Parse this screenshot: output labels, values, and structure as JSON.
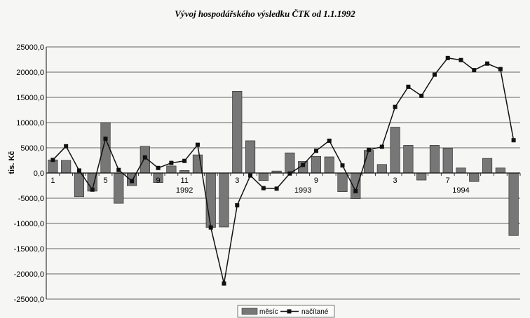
{
  "chart_data": {
    "type": "bar",
    "title": "Vývoj hospodářského výsledku ČTK od 1.1.1992",
    "ylabel": "tis. Kč",
    "xlabel": "",
    "ylim": [
      -25000,
      25000
    ],
    "yticks": [
      -25000,
      -20000,
      -15000,
      -10000,
      -5000,
      0,
      5000,
      10000,
      15000,
      20000,
      25000
    ],
    "ytick_labels": [
      "-25000,0",
      "-20000,0",
      "-15000,0",
      "-10000,0",
      "-5000,0",
      "0,0",
      "5000,0",
      "10000,0",
      "15000,0",
      "20000,0",
      "25000,0"
    ],
    "grid": true,
    "legend_position": "bottom-center",
    "x_month_labels": [
      {
        "index": 0,
        "label": "1"
      },
      {
        "index": 4,
        "label": "5"
      },
      {
        "index": 8,
        "label": "9"
      },
      {
        "index": 10,
        "label": "11"
      },
      {
        "index": 14,
        "label": "3"
      },
      {
        "index": 20,
        "label": "9"
      },
      {
        "index": 26,
        "label": "3"
      },
      {
        "index": 30,
        "label": "7"
      }
    ],
    "year_labels": [
      {
        "index": 10,
        "label": "1992"
      },
      {
        "index": 19,
        "label": "1993"
      },
      {
        "index": 31,
        "label": "1994"
      }
    ],
    "series": [
      {
        "name": "měsíc",
        "type": "bar",
        "color": "#777777",
        "values": [
          2600,
          2500,
          -4700,
          -3600,
          10000,
          -6000,
          -2500,
          5300,
          -1900,
          1400,
          500,
          3600,
          -10800,
          -10700,
          16200,
          6400,
          -1500,
          400,
          4000,
          2300,
          3300,
          3200,
          -3700,
          -5100,
          4500,
          1700,
          9100,
          5500,
          -1400,
          5500,
          4900,
          1000,
          -1700,
          2900,
          1000,
          -12400
        ]
      },
      {
        "name": "načítané",
        "type": "line",
        "color": "#111111",
        "values": [
          2600,
          5300,
          500,
          -3300,
          6800,
          600,
          -1600,
          3100,
          1000,
          2000,
          2400,
          5600,
          -10800,
          -21900,
          -6400,
          -500,
          -3000,
          -3100,
          -100,
          1600,
          4400,
          6400,
          1500,
          -3600,
          4600,
          5200,
          13100,
          17100,
          15300,
          19500,
          22800,
          22400,
          20400,
          21700,
          20600,
          6500
        ]
      }
    ]
  }
}
